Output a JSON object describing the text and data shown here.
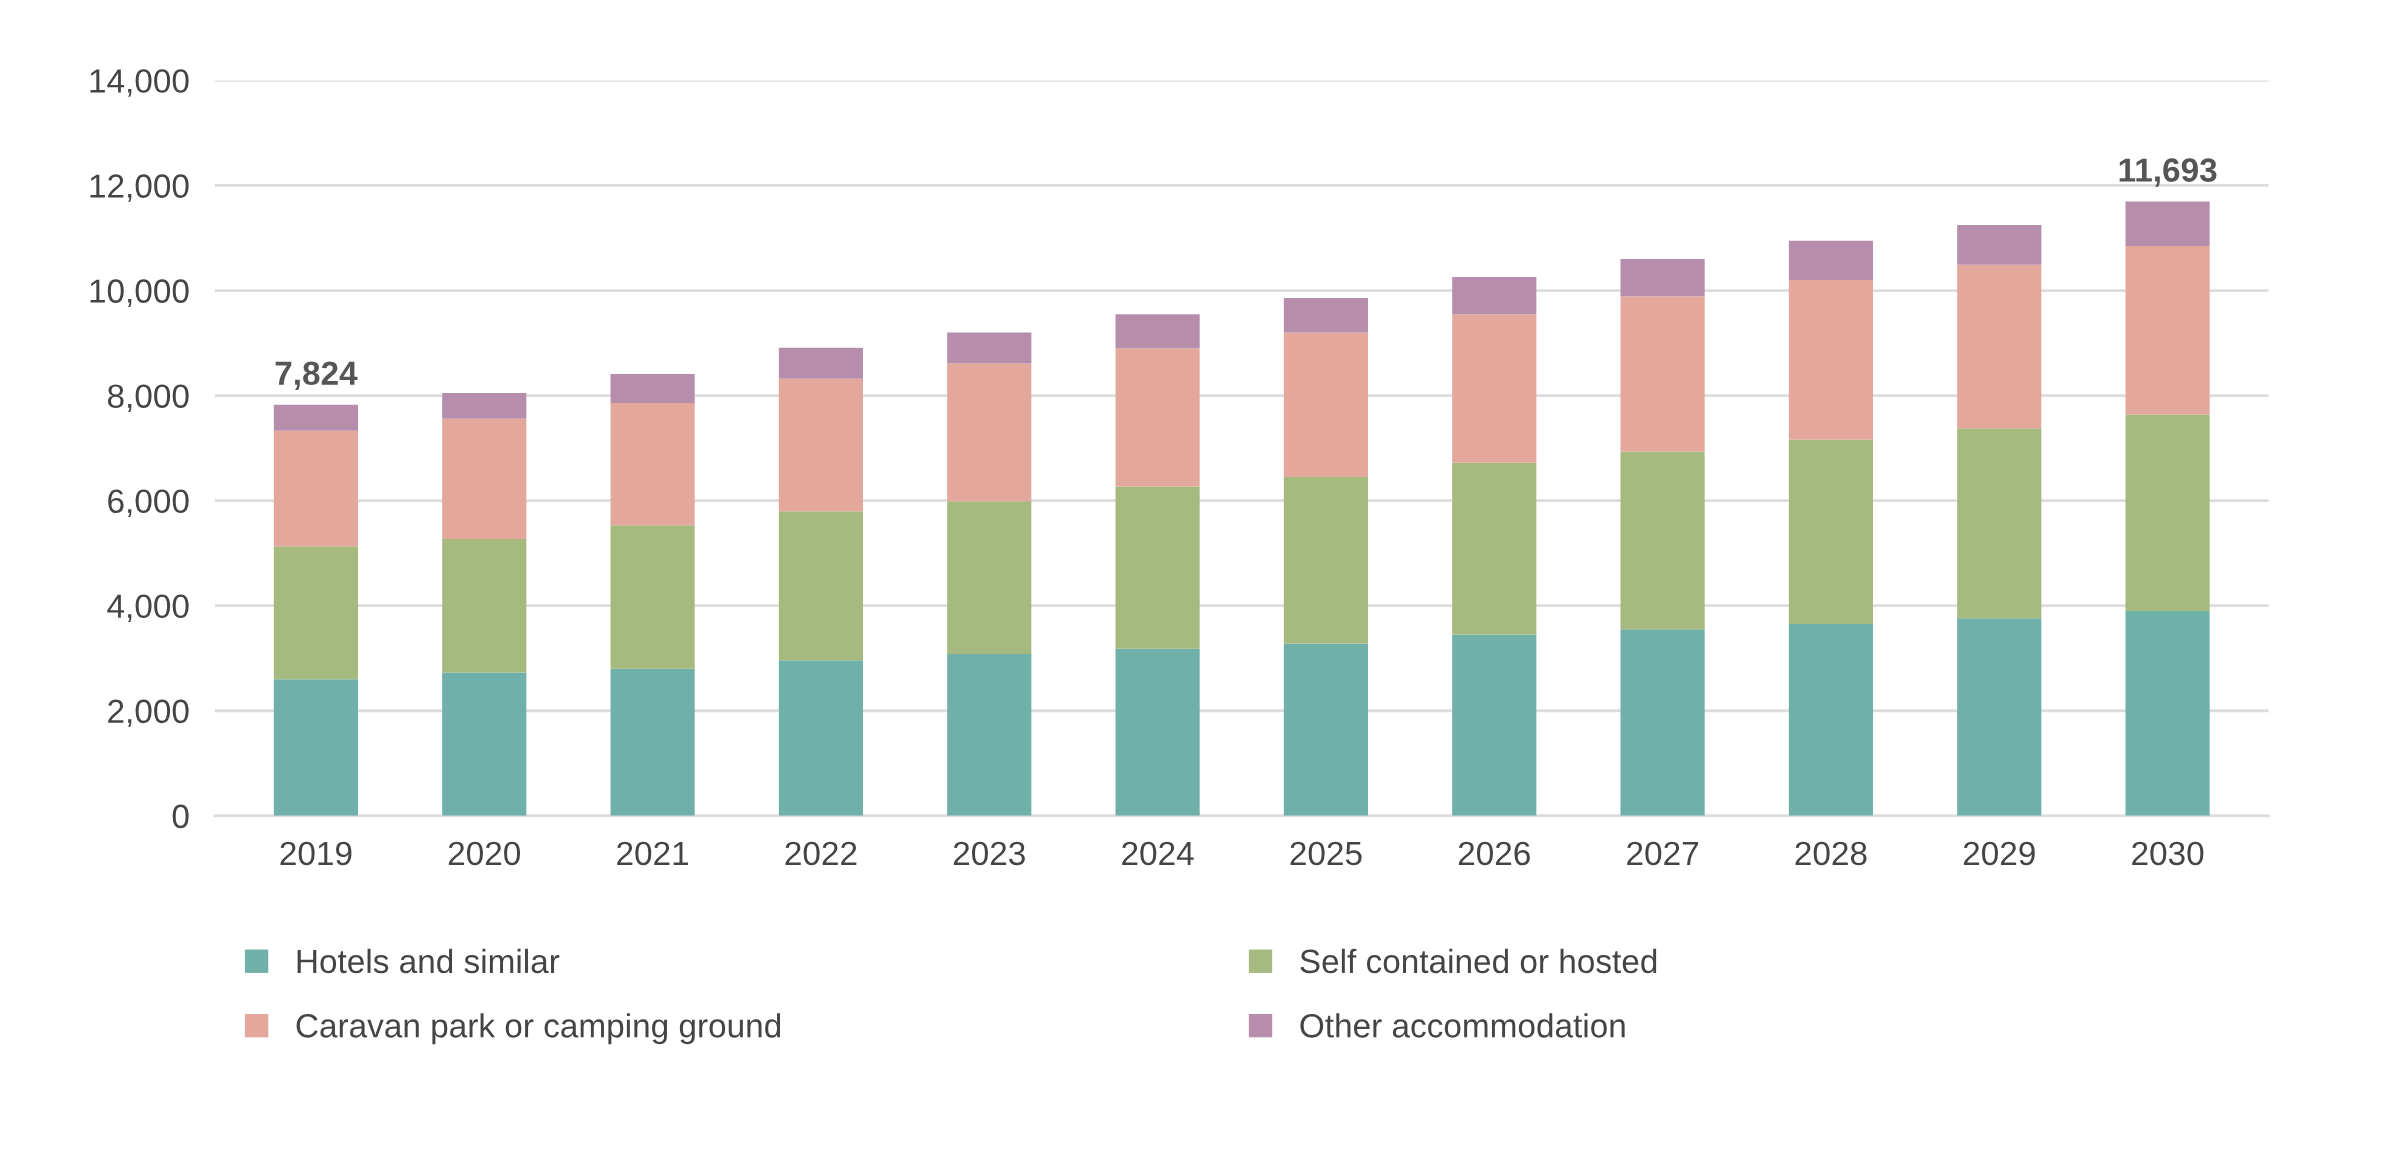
{
  "chart_data": {
    "type": "bar",
    "stacked": true,
    "categories": [
      "2019",
      "2020",
      "2021",
      "2022",
      "2023",
      "2024",
      "2025",
      "2026",
      "2027",
      "2028",
      "2029",
      "2030"
    ],
    "series": [
      {
        "name": "Hotels and similar",
        "color": "#6fb0a9",
        "values": [
          2600,
          2730,
          2800,
          2960,
          3080,
          3180,
          3280,
          3450,
          3550,
          3650,
          3760,
          3900
        ]
      },
      {
        "name": "Self contained or hosted",
        "color": "#a6b97f",
        "values": [
          2530,
          2540,
          2730,
          2840,
          2910,
          3090,
          3170,
          3270,
          3380,
          3510,
          3620,
          3740
        ]
      },
      {
        "name": "Caravan park or camping ground",
        "color": "#e3a89b",
        "values": [
          2200,
          2290,
          2330,
          2520,
          2620,
          2630,
          2750,
          2830,
          2960,
          3040,
          3110,
          3210
        ]
      },
      {
        "name": "Other accommodation",
        "color": "#b68eac",
        "values": [
          494,
          490,
          550,
          590,
          590,
          650,
          660,
          710,
          710,
          750,
          760,
          843
        ]
      }
    ],
    "totals": [
      "7,824",
      null,
      null,
      null,
      null,
      null,
      null,
      null,
      null,
      null,
      null,
      "11,693"
    ],
    "ylim": [
      0,
      14000
    ],
    "yticks": [
      0,
      {
        "value": 2000,
        "label": "2,000"
      },
      {
        "value": 4000,
        "label": "4,000"
      },
      {
        "value": 6000,
        "label": "6,000"
      },
      {
        "value": 8000,
        "label": "8,000"
      },
      {
        "value": 10000,
        "label": "10,000"
      },
      {
        "value": 12000,
        "label": "12,000"
      },
      {
        "value": 14000,
        "label": "14,000"
      }
    ],
    "grid": "y",
    "legend": "bottom"
  }
}
